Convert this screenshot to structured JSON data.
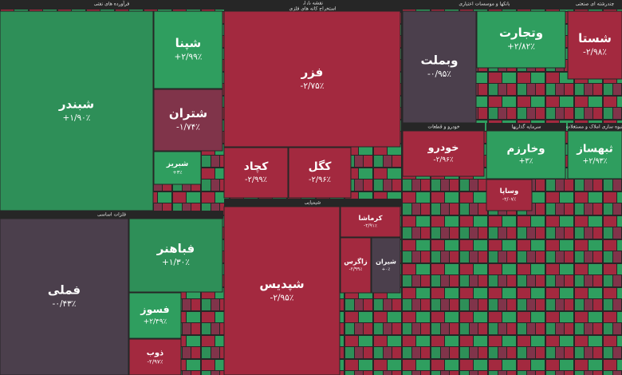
{
  "chart_data": {
    "type": "treemap",
    "title": "نقشه بازار",
    "sectors": [
      {
        "name": "فرآورده های نفتی"
      },
      {
        "name": "استخراج کانه های فلزی"
      },
      {
        "name": "بانکها و موسسات اعتباری"
      },
      {
        "name": "چندرشته ای صنعتی"
      },
      {
        "name": "فلزات اساسی"
      },
      {
        "name": "شیمیایی"
      },
      {
        "name": "خودرو و قطعات"
      },
      {
        "name": "سرمایه گذاریها"
      },
      {
        "name": "انبوه سازی املاک و مستغلات"
      }
    ],
    "tiles": [
      {
        "name": "شبندر",
        "value": 1.9,
        "value_label": "+۱/۹۰٪",
        "color": "#2e8f58"
      },
      {
        "name": "شپنا",
        "value": 2.99,
        "value_label": "+۲/۹۹٪",
        "color": "#2f9e5f"
      },
      {
        "name": "شتران",
        "value": -1.74,
        "value_label": "-۱/۷۴٪",
        "color": "#80344a"
      },
      {
        "name": "شبریز",
        "value": 3,
        "value_label": "+۳٪",
        "color": "#2f9e5f"
      },
      {
        "name": "فزر",
        "value": -2.75,
        "value_label": "-۲/۷۵٪",
        "color": "#a3293f"
      },
      {
        "name": "کچاد",
        "value": -2.99,
        "value_label": "-۲/۹۹٪",
        "color": "#a3293f"
      },
      {
        "name": "کگل",
        "value": -2.96,
        "value_label": "-۲/۹۶٪",
        "color": "#a3293f"
      },
      {
        "name": "وبملت",
        "value": -0.95,
        "value_label": "-۰/۹۵٪",
        "color": "#4b3f4c"
      },
      {
        "name": "وتجارت",
        "value": 2.82,
        "value_label": "+۲/۸۲٪",
        "color": "#2f9e5f"
      },
      {
        "name": "شستا",
        "value": -2.98,
        "value_label": "-۲/۹۸٪",
        "color": "#a3293f"
      },
      {
        "name": "فملی",
        "value": -0.43,
        "value_label": "-۰/۴۳٪",
        "color": "#4b3f4c"
      },
      {
        "name": "فباهنر",
        "value": 1.3,
        "value_label": "+۱/۳۰٪",
        "color": "#2e8f58"
      },
      {
        "name": "فسوز",
        "value": 2.49,
        "value_label": "+۲/۴۹٪",
        "color": "#2f9e5f"
      },
      {
        "name": "ذوب",
        "value": -2.97,
        "value_label": "-۲/۹۷٪",
        "color": "#a3293f"
      },
      {
        "name": "شپدیس",
        "value": -2.95,
        "value_label": "-۲/۹۵٪",
        "color": "#a3293f"
      },
      {
        "name": "کرماشا",
        "value": -2.91,
        "value_label": "-۲/۹۱٪",
        "color": "#a3293f"
      },
      {
        "name": "زاگرس",
        "value": -2.99,
        "value_label": "-۲/۹۹٪",
        "color": "#a3293f"
      },
      {
        "name": "شیران",
        "value": 0,
        "value_label": "+۰٪",
        "color": "#4b3f4c"
      },
      {
        "name": "خودرو",
        "value": -2.96,
        "value_label": "-۲/۹۶٪",
        "color": "#a3293f"
      },
      {
        "name": "وخارزم",
        "value": 3,
        "value_label": "+۳٪",
        "color": "#2f9e5f"
      },
      {
        "name": "وساپا",
        "value": -2.07,
        "value_label": "-۲/۰۷٪",
        "color": "#a3293f"
      },
      {
        "name": "ثبهساز",
        "value": 2.93,
        "value_label": "+۲/۹۳٪",
        "color": "#2f9e5f"
      }
    ]
  }
}
